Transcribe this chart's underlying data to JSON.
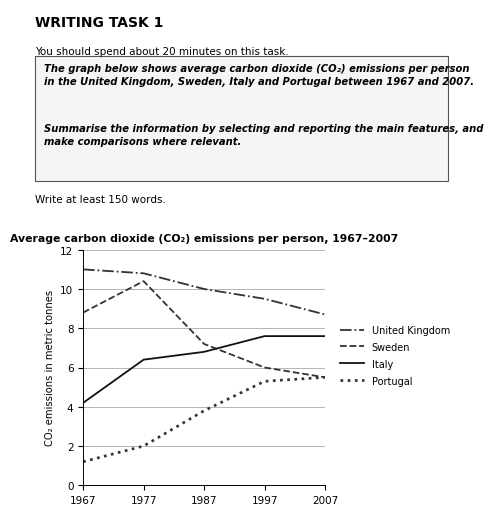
{
  "title": "Average carbon dioxide (CO₂) emissions per person, 1967–2007",
  "ylabel": "CO₂ emissions in metric tonnes",
  "years": [
    1967,
    1977,
    1987,
    1997,
    2007
  ],
  "uk": [
    11.0,
    10.8,
    10.0,
    9.5,
    8.7
  ],
  "sweden": [
    8.8,
    10.4,
    7.2,
    6.0,
    5.5
  ],
  "italy": [
    4.2,
    6.4,
    6.8,
    7.6,
    7.6
  ],
  "portugal": [
    1.2,
    2.0,
    3.8,
    5.3,
    5.5
  ],
  "xlim": [
    1967,
    2007
  ],
  "ylim": [
    0,
    12
  ],
  "yticks": [
    0,
    2,
    4,
    6,
    8,
    10,
    12
  ],
  "xticks": [
    1967,
    1977,
    1987,
    1997,
    2007
  ],
  "header_title": "WRITING TASK 1",
  "header_sub": "You should spend about 20 minutes on this task.",
  "box_text1": "The graph below shows average carbon dioxide (CO₂) emissions per person\nin the United Kingdom, Sweden, Italy and Portugal between 1967 and 2007.",
  "box_text2": "Summarise the information by selecting and reporting the main features, and\nmake comparisons where relevant.",
  "footer_text": "Write at least 150 words.",
  "bg_color": "#ffffff",
  "text_color": "#000000",
  "grid_color": "#aaaaaa",
  "legend_entries": [
    "United Kingdom",
    "Sweden",
    "Italy",
    "Portugal"
  ]
}
